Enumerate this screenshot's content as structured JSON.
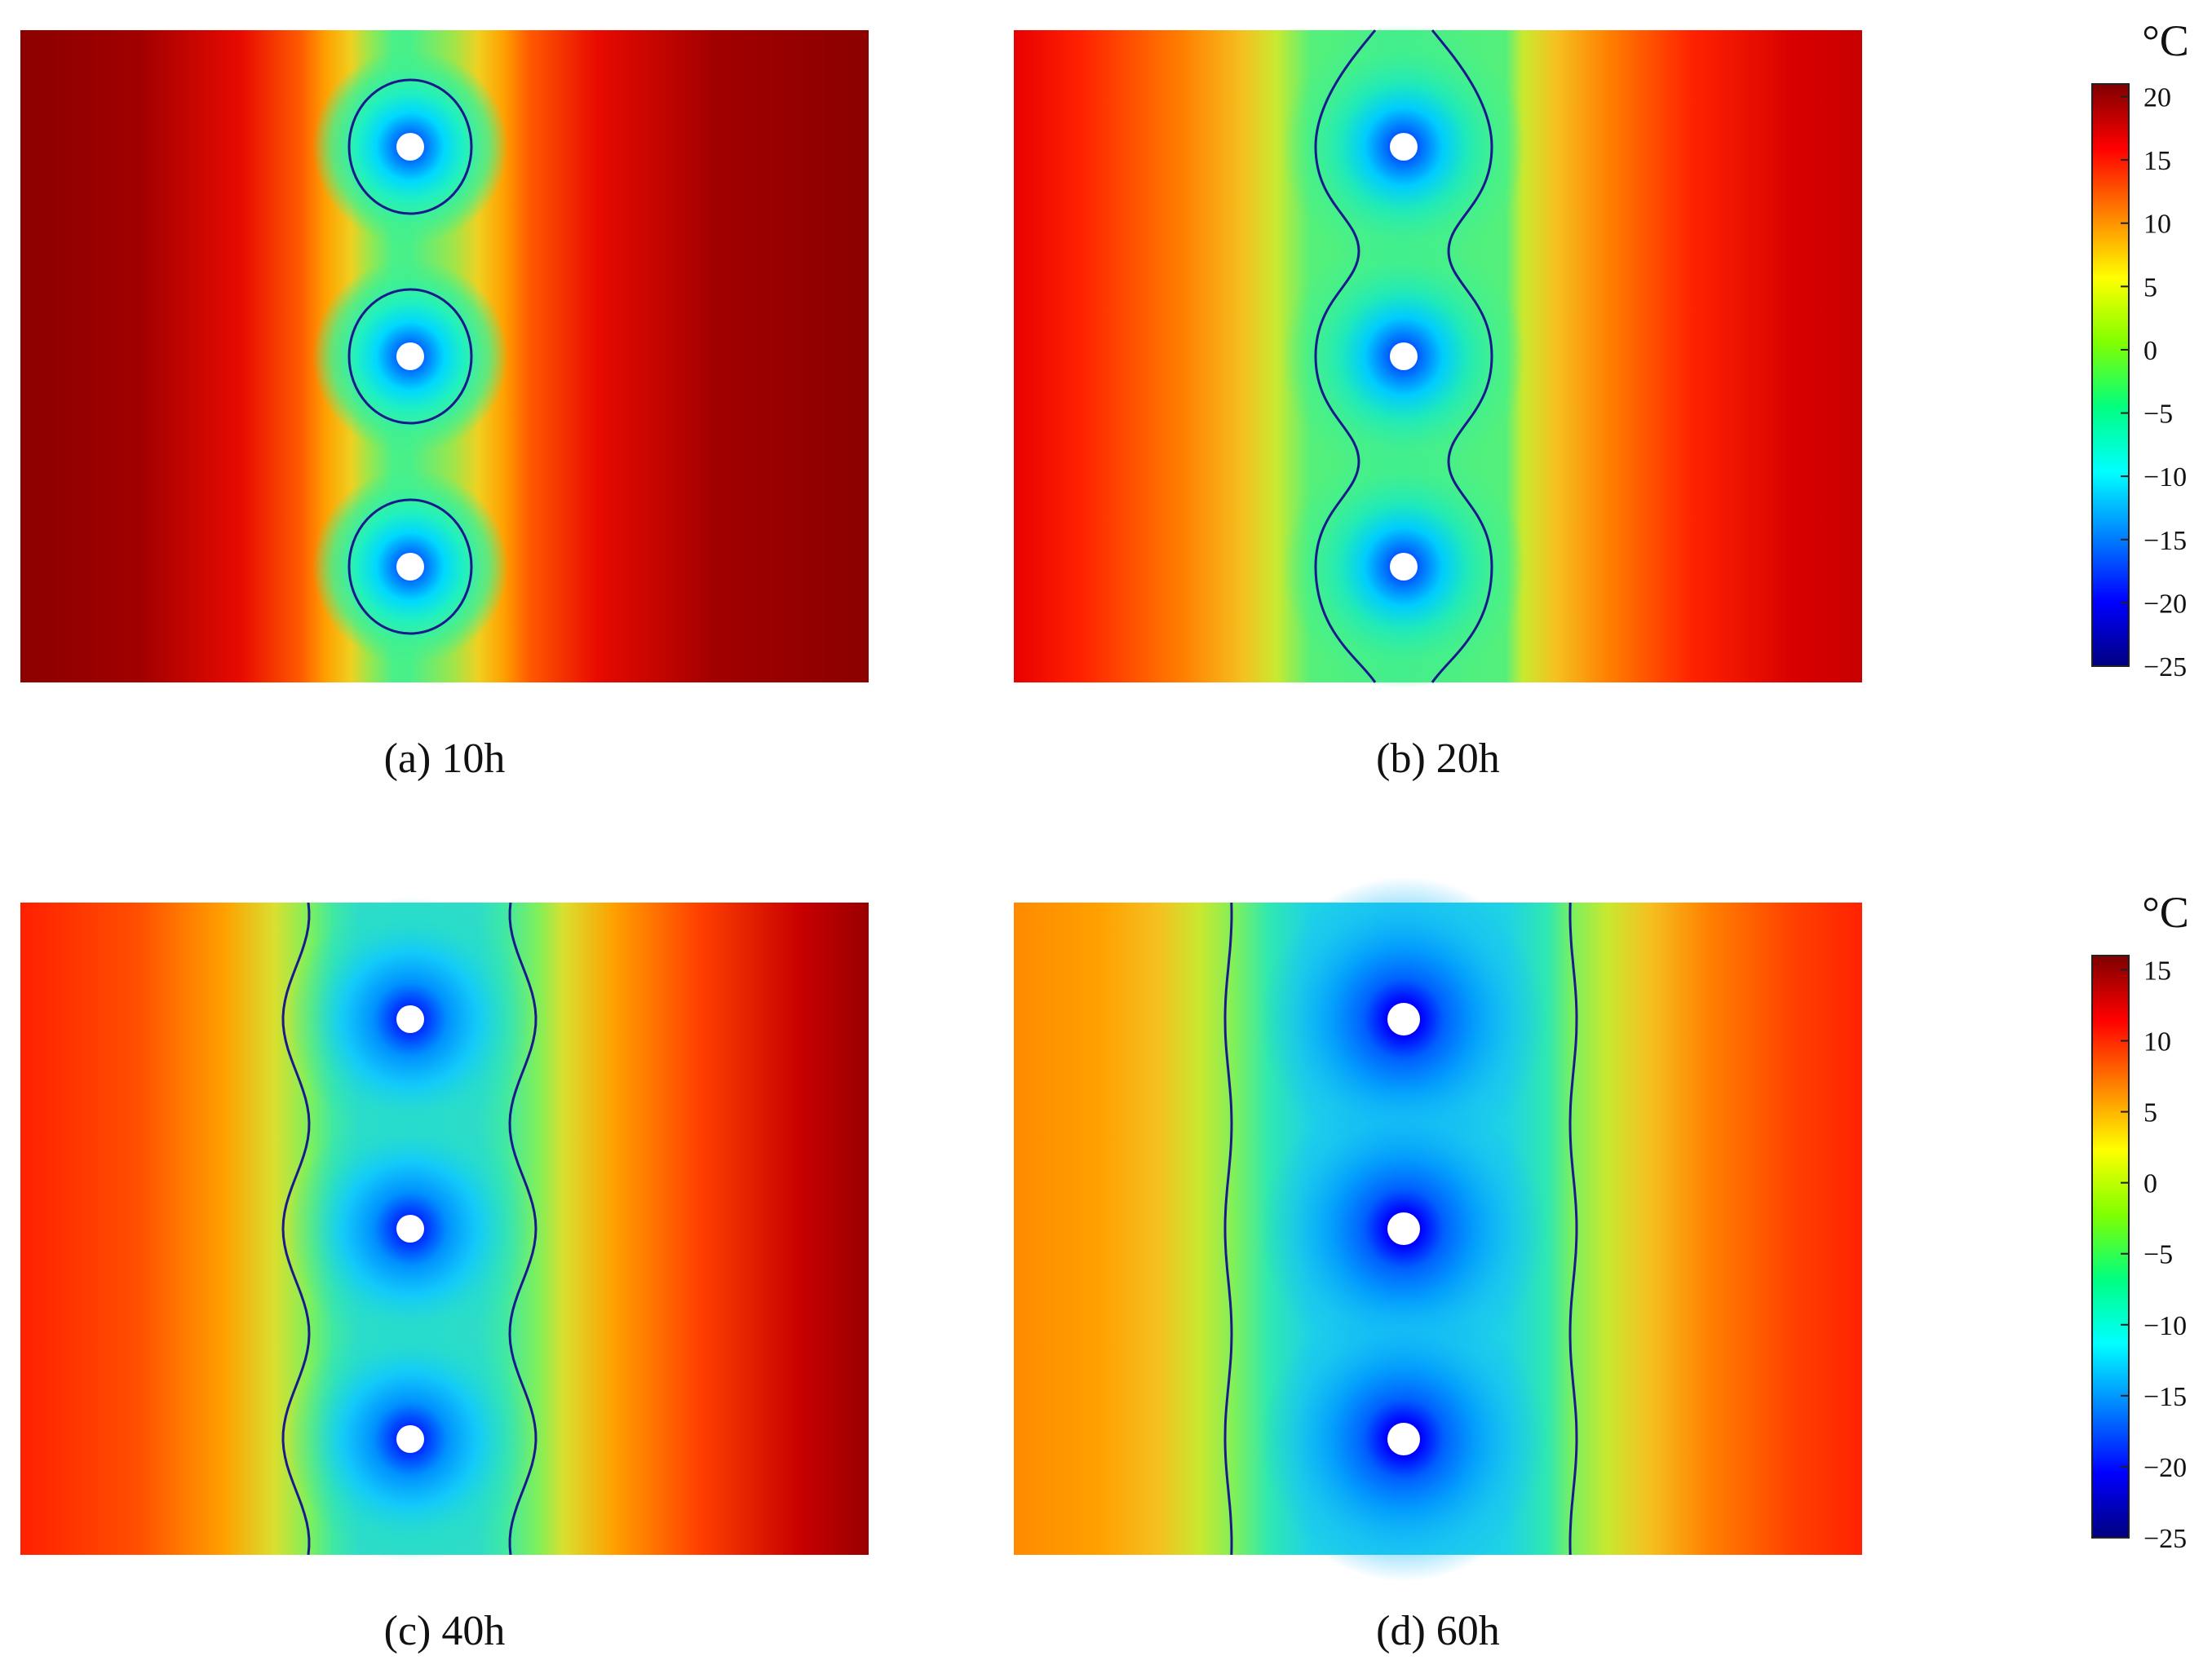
{
  "figure": {
    "colormap": [
      "#00007f",
      "#0000ff",
      "#0080ff",
      "#00ffff",
      "#00ff80",
      "#80ff00",
      "#ffff00",
      "#ff8000",
      "#ff0000",
      "#7f0000"
    ],
    "isotherm_color": "#1a1a8c",
    "hole_color": "#ffffff"
  },
  "chart_data": [
    {
      "type": "heatmap",
      "panel": "a",
      "caption": "(a) 10h",
      "frozen_wall": "separate",
      "freeze_pipes": 3,
      "colorbar": {
        "unit": "°C",
        "range": [
          -25,
          21
        ],
        "ticks": [
          -25,
          -20,
          -15,
          -10,
          -5,
          0,
          5,
          10,
          15,
          20
        ]
      }
    },
    {
      "type": "heatmap",
      "panel": "b",
      "caption": "(b) 20h",
      "frozen_wall": "joined",
      "freeze_pipes": 3,
      "colorbar": {
        "unit": "°C",
        "range": [
          -25,
          21
        ],
        "ticks": [
          -25,
          -20,
          -15,
          -10,
          -5,
          0,
          5,
          10,
          15,
          20
        ]
      }
    },
    {
      "type": "heatmap",
      "panel": "c",
      "caption": "(c) 40h",
      "frozen_wall": "continuous",
      "freeze_pipes": 3,
      "colorbar": {
        "unit": "°C",
        "range": [
          -25,
          16
        ],
        "ticks": [
          -25,
          -20,
          -15,
          -10,
          -5,
          0,
          5,
          10,
          15
        ]
      }
    },
    {
      "type": "heatmap",
      "panel": "d",
      "caption": "(d) 60h",
      "frozen_wall": "continuous",
      "freeze_pipes": 3,
      "colorbar": {
        "unit": "°C",
        "range": [
          -25,
          16
        ],
        "ticks": [
          -25,
          -20,
          -15,
          -10,
          -5,
          0,
          5,
          10,
          15
        ]
      }
    }
  ]
}
